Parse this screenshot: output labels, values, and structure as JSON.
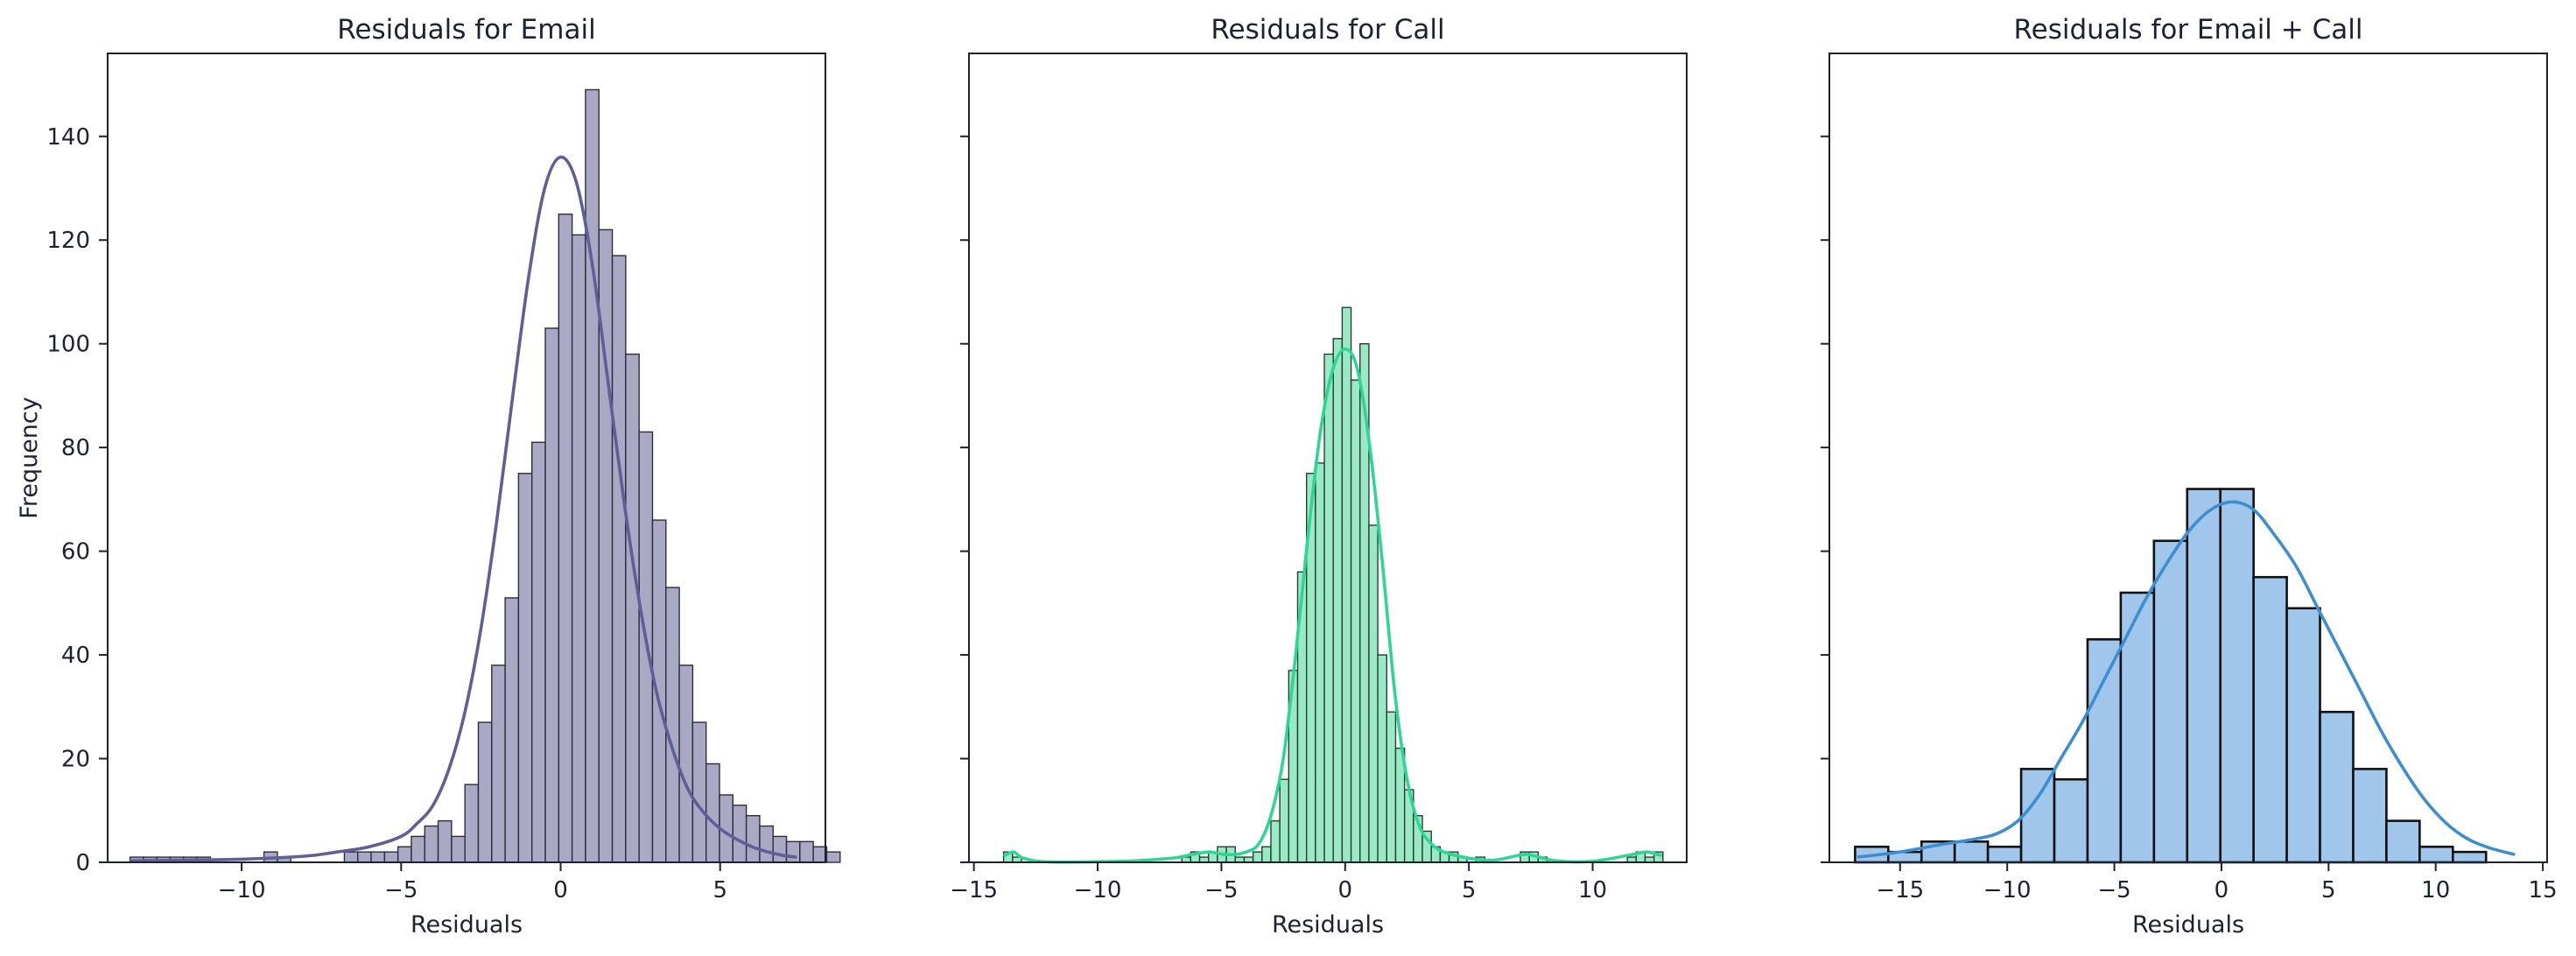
{
  "chart_data": [
    {
      "type": "bar",
      "title": "Residuals for Email",
      "xlabel": "Residuals",
      "ylabel": "Frequency",
      "xlim": [
        -14.2,
        8.3
      ],
      "ylim": [
        0,
        156
      ],
      "xticks": [
        -10,
        -5,
        0,
        5
      ],
      "yticks": [
        0,
        20,
        40,
        60,
        80,
        100,
        120,
        140
      ],
      "show_ytick_labels": true,
      "fill_color": "#a9a9c6",
      "edge_color": "#2c2c3c",
      "kde_color": "#5f5f96",
      "bin_start": -13.5,
      "bin_width": 0.42,
      "counts": [
        1,
        1,
        1,
        1,
        1,
        1,
        0,
        0,
        0,
        0,
        2,
        1,
        0,
        0,
        0,
        0,
        2,
        2,
        2,
        2,
        3,
        5,
        7,
        8,
        5,
        15,
        27,
        38,
        51,
        75,
        81,
        103,
        125,
        121,
        149,
        122,
        117,
        98,
        83,
        66,
        53,
        38,
        27,
        19,
        13,
        11,
        9,
        7,
        5,
        4,
        4,
        3,
        2
      ],
      "kde": {
        "x": [
          -13.5,
          -12,
          -10,
          -8,
          -7,
          -6,
          -5,
          -4.5,
          -4,
          -3.5,
          -3,
          -2.5,
          -2,
          -1.5,
          -1,
          -0.5,
          0,
          0.5,
          1,
          1.5,
          2,
          2.5,
          3,
          3.5,
          4,
          4.5,
          5,
          5.5,
          6,
          6.5,
          7,
          7.4
        ],
        "y": [
          0.3,
          0.4,
          0.6,
          1.2,
          2,
          3,
          5,
          7.5,
          11,
          18,
          29,
          45,
          66,
          90,
          113,
          130,
          136,
          131,
          115,
          92,
          69,
          49,
          33,
          22,
          14,
          9.5,
          6.5,
          4.5,
          3,
          2,
          1.3,
          1
        ]
      }
    },
    {
      "type": "bar",
      "title": "Residuals for Call",
      "xlabel": "Residuals",
      "ylabel": "",
      "xlim": [
        -15.2,
        13.8
      ],
      "ylim": [
        0,
        156
      ],
      "xticks": [
        -15,
        -10,
        -5,
        0,
        5,
        10
      ],
      "yticks": [
        0,
        20,
        40,
        60,
        80,
        100,
        120,
        140
      ],
      "show_ytick_labels": false,
      "fill_color": "#99e9c5",
      "edge_color": "#2c3c34",
      "kde_color": "#2ed695",
      "bins": [
        {
          "x0": -13.8,
          "w": 0.36,
          "y": 2
        },
        {
          "x0": -13.44,
          "w": 0.36,
          "y": 1
        },
        {
          "x0": -6.6,
          "w": 0.36,
          "y": 1
        },
        {
          "x0": -6.24,
          "w": 0.36,
          "y": 2
        },
        {
          "x0": -5.88,
          "w": 0.36,
          "y": 1
        },
        {
          "x0": -5.52,
          "w": 0.36,
          "y": 2
        },
        {
          "x0": -5.16,
          "w": 0.36,
          "y": 3
        },
        {
          "x0": -4.8,
          "w": 0.36,
          "y": 3
        },
        {
          "x0": -4.44,
          "w": 0.36,
          "y": 1
        },
        {
          "x0": -4.08,
          "w": 0.36,
          "y": 1
        },
        {
          "x0": -3.72,
          "w": 0.36,
          "y": 2
        },
        {
          "x0": -3.36,
          "w": 0.36,
          "y": 3
        },
        {
          "x0": -3.0,
          "w": 0.36,
          "y": 8
        },
        {
          "x0": -2.64,
          "w": 0.36,
          "y": 16
        },
        {
          "x0": -2.28,
          "w": 0.36,
          "y": 37
        },
        {
          "x0": -1.92,
          "w": 0.36,
          "y": 56
        },
        {
          "x0": -1.56,
          "w": 0.36,
          "y": 75
        },
        {
          "x0": -1.2,
          "w": 0.36,
          "y": 77
        },
        {
          "x0": -0.84,
          "w": 0.36,
          "y": 98
        },
        {
          "x0": -0.48,
          "w": 0.36,
          "y": 101
        },
        {
          "x0": -0.12,
          "w": 0.36,
          "y": 107
        },
        {
          "x0": 0.24,
          "w": 0.36,
          "y": 93
        },
        {
          "x0": 0.6,
          "w": 0.36,
          "y": 100
        },
        {
          "x0": 0.96,
          "w": 0.36,
          "y": 65
        },
        {
          "x0": 1.32,
          "w": 0.36,
          "y": 40
        },
        {
          "x0": 1.68,
          "w": 0.36,
          "y": 29
        },
        {
          "x0": 2.04,
          "w": 0.36,
          "y": 22
        },
        {
          "x0": 2.4,
          "w": 0.36,
          "y": 14
        },
        {
          "x0": 2.76,
          "w": 0.36,
          "y": 9
        },
        {
          "x0": 3.12,
          "w": 0.36,
          "y": 6
        },
        {
          "x0": 3.48,
          "w": 0.36,
          "y": 3
        },
        {
          "x0": 3.84,
          "w": 0.36,
          "y": 2
        },
        {
          "x0": 4.2,
          "w": 0.36,
          "y": 2
        },
        {
          "x0": 4.56,
          "w": 0.36,
          "y": 1
        },
        {
          "x0": 5.28,
          "w": 0.36,
          "y": 1
        },
        {
          "x0": 7.08,
          "w": 0.36,
          "y": 2
        },
        {
          "x0": 7.44,
          "w": 0.36,
          "y": 2
        },
        {
          "x0": 7.8,
          "w": 0.36,
          "y": 1
        },
        {
          "x0": 11.4,
          "w": 0.36,
          "y": 1
        },
        {
          "x0": 11.76,
          "w": 0.36,
          "y": 2
        },
        {
          "x0": 12.12,
          "w": 0.36,
          "y": 1
        },
        {
          "x0": 12.48,
          "w": 0.36,
          "y": 2
        }
      ],
      "kde": {
        "x": [
          -13.8,
          -13.4,
          -13,
          -12,
          -9,
          -7,
          -6.2,
          -5.5,
          -5,
          -4.5,
          -4,
          -3.5,
          -3,
          -2.5,
          -2,
          -1.5,
          -1,
          -0.5,
          0,
          0.5,
          1,
          1.5,
          2,
          2.5,
          3,
          3.5,
          4,
          5,
          6,
          7.2,
          7.7,
          8.5,
          10,
          11.6,
          12.2,
          12.8
        ],
        "y": [
          1.2,
          2,
          0.8,
          0.1,
          0.2,
          0.8,
          1.5,
          2,
          1.6,
          1.5,
          2,
          3.5,
          9,
          20,
          40,
          63,
          83,
          95,
          99,
          95,
          80,
          58,
          33,
          16,
          7,
          3.5,
          2,
          0.8,
          0.4,
          1.5,
          1.2,
          0.3,
          0.2,
          1.5,
          2,
          1.3
        ]
      }
    },
    {
      "type": "bar",
      "title": "Residuals for Email + Call",
      "xlabel": "Residuals",
      "ylabel": "",
      "xlim": [
        -18.3,
        15.2
      ],
      "ylim": [
        0,
        156
      ],
      "xticks": [
        -15,
        -10,
        -5,
        0,
        5,
        10,
        15
      ],
      "yticks": [
        0,
        20,
        40,
        60,
        80,
        100,
        120,
        140
      ],
      "show_ytick_labels": false,
      "fill_color": "#a0c6ec",
      "edge_color": "#111111",
      "kde_color": "#3d8ed0",
      "bin_start": -17.1,
      "bin_width": 1.55,
      "counts": [
        3,
        2,
        4,
        4,
        3,
        18,
        16,
        43,
        52,
        62,
        72,
        72,
        55,
        49,
        29,
        18,
        8,
        3,
        2
      ],
      "kde": {
        "x": [
          -17,
          -15,
          -13,
          -11.5,
          -10.5,
          -9.5,
          -8.5,
          -7.5,
          -6.5,
          -5.5,
          -4.5,
          -3.5,
          -2.5,
          -1.5,
          -0.5,
          0.5,
          1.5,
          2.5,
          3.5,
          4.5,
          5.5,
          6.5,
          7.5,
          8.5,
          9.5,
          10.5,
          11.5,
          12.5,
          13.7
        ],
        "y": [
          1,
          2,
          3.5,
          4.5,
          5.5,
          8,
          13,
          20,
          27,
          35,
          43,
          51,
          58,
          64,
          68,
          69.5,
          68,
          63,
          57,
          49,
          41,
          33,
          25,
          18,
          12,
          7.5,
          4.5,
          2.8,
          1.5
        ]
      }
    }
  ]
}
